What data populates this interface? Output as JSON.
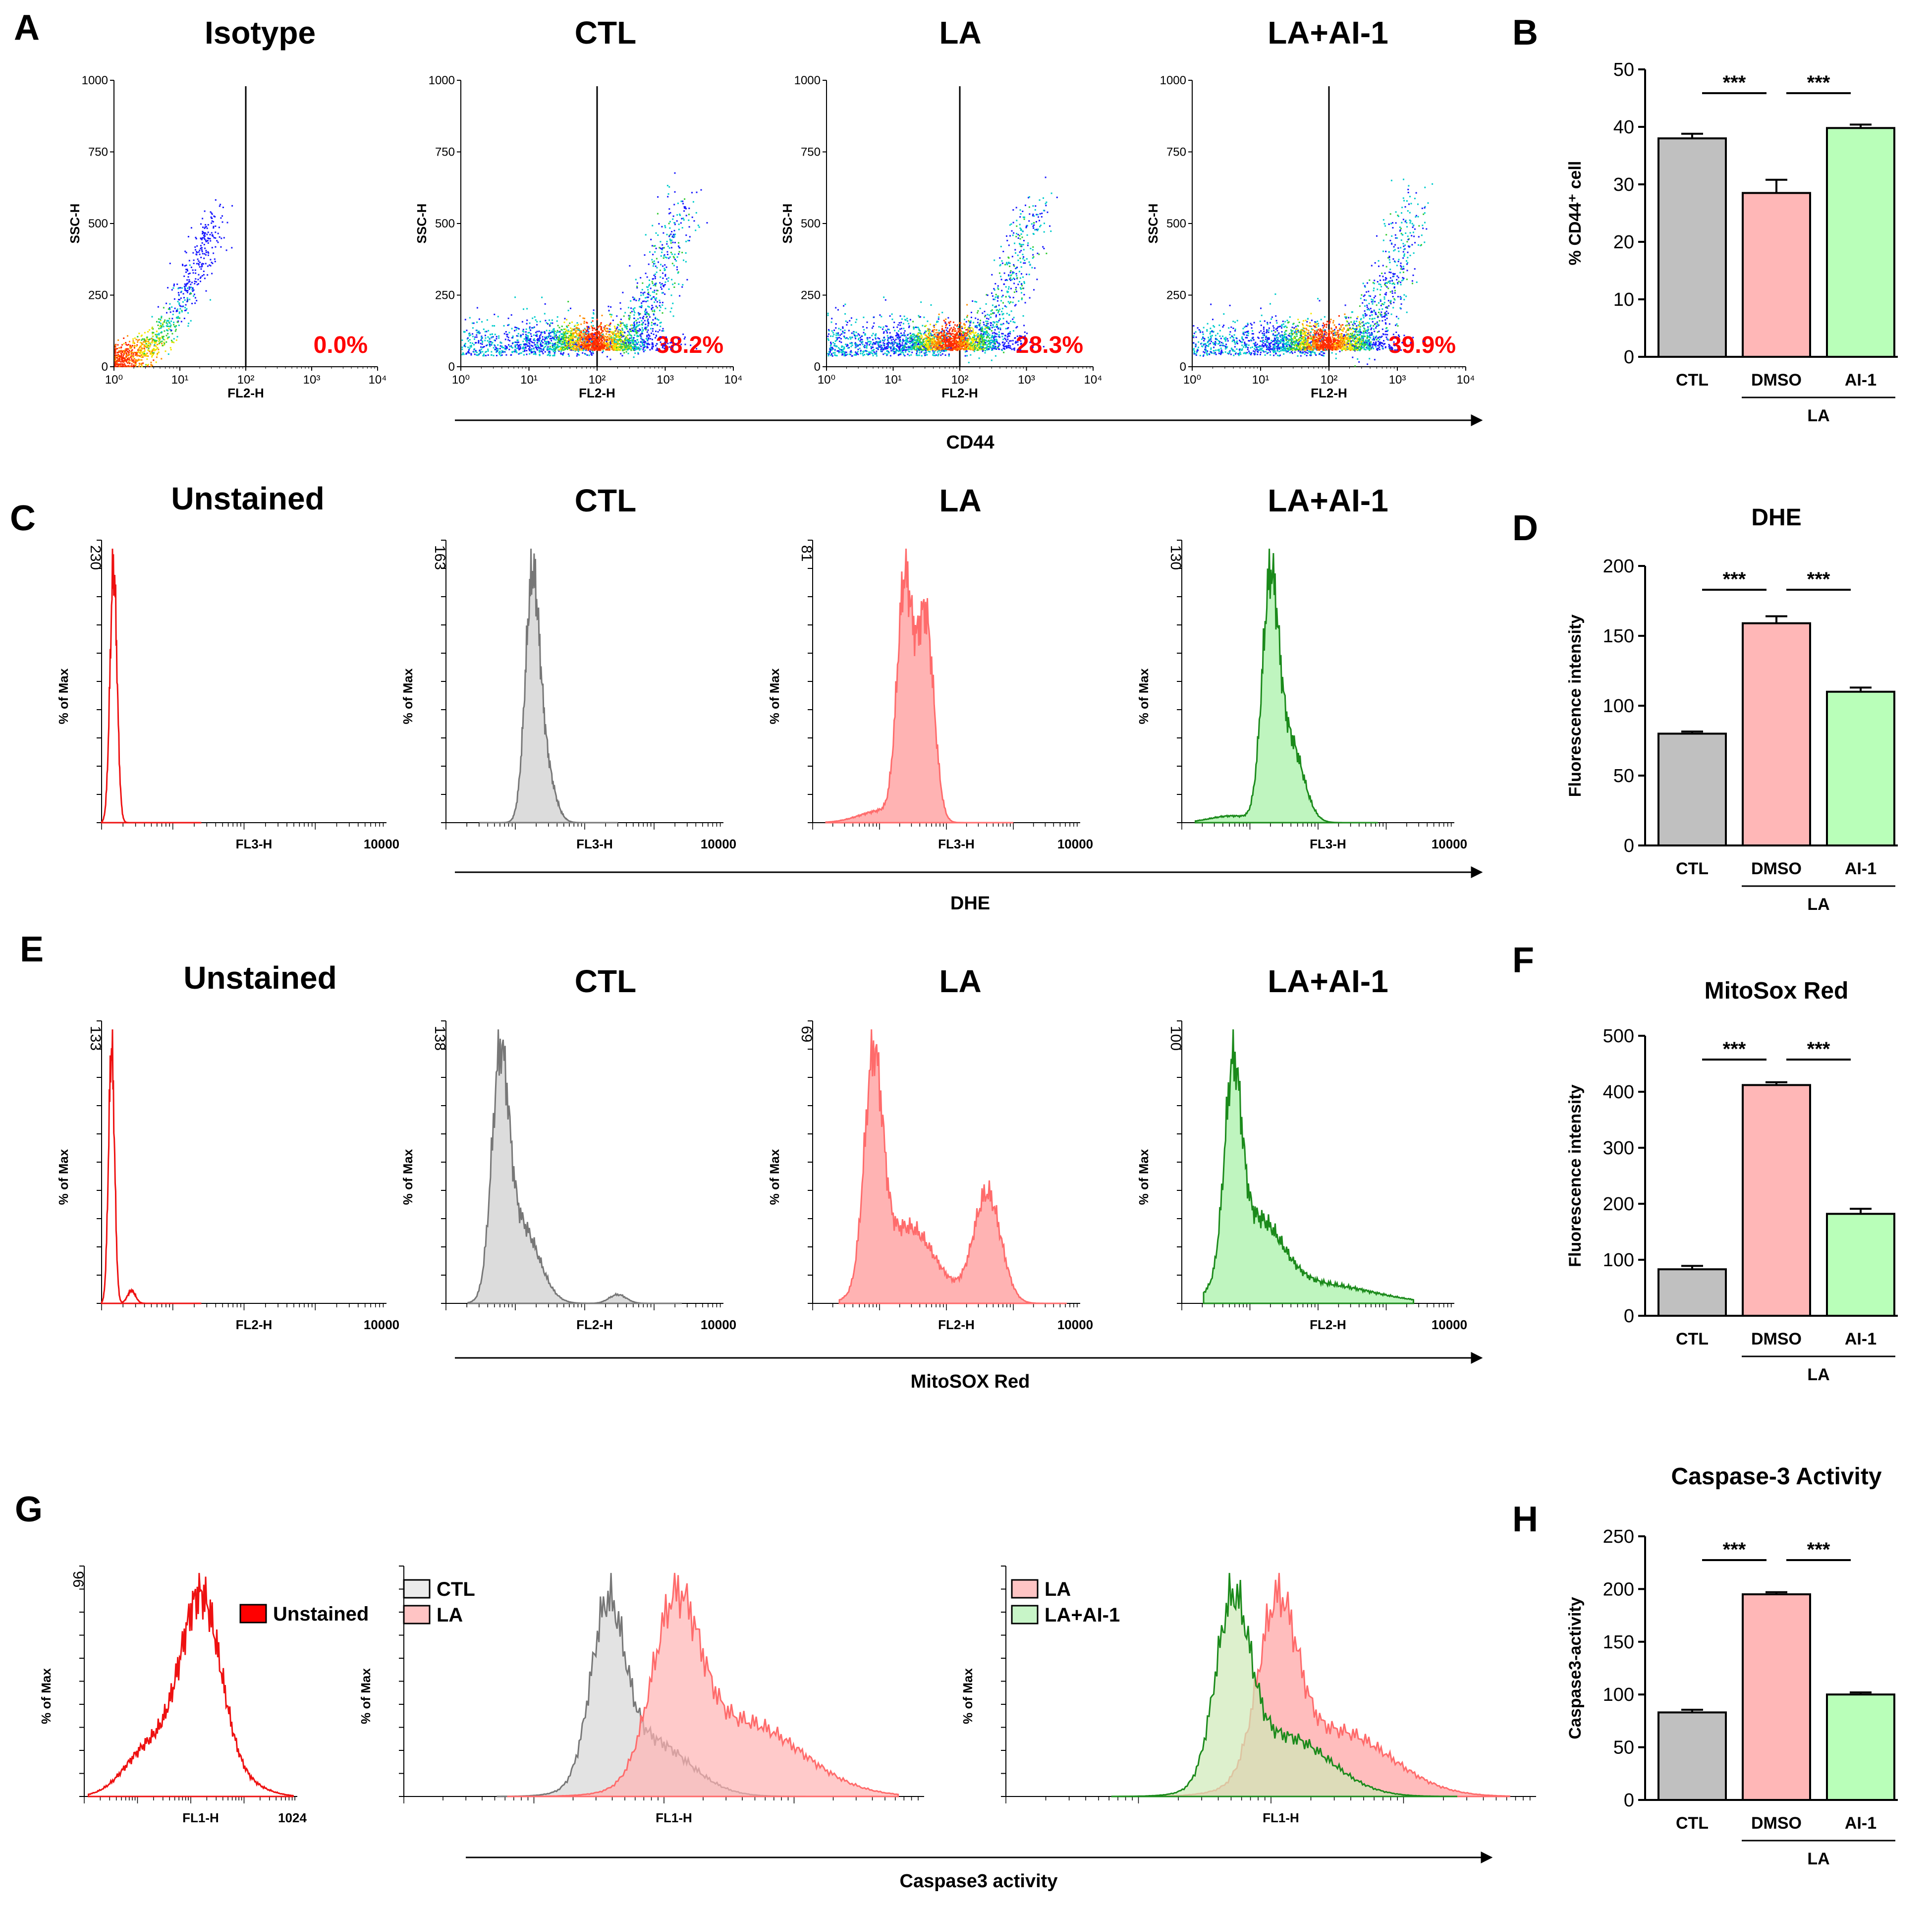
{
  "panel_letters": {
    "A": "A",
    "B": "B",
    "C": "C",
    "D": "D",
    "E": "E",
    "F": "F",
    "G": "G",
    "H": "H"
  },
  "row1_titles": [
    "Isotype",
    "CTL",
    "LA",
    "LA+AI-1"
  ],
  "row2_titles": [
    "Unstained",
    "CTL",
    "LA",
    "LA+AI-1"
  ],
  "row3_titles": [
    "Unstained",
    "CTL",
    "LA",
    "LA+AI-1"
  ],
  "chart_data": [
    {
      "id": "A",
      "type": "scatter",
      "title_list": [
        "Isotype",
        "CTL",
        "LA",
        "LA+AI-1"
      ],
      "xlabel": "FL2-H",
      "ylabel": "SSC-H",
      "x_ticks": [
        "10⁰",
        "10¹",
        "10²",
        "10³",
        "10⁴"
      ],
      "y_ticks": [
        "0",
        "250",
        "500",
        "750",
        "1000"
      ],
      "percentages": [
        "0.0%",
        "38.2%",
        "28.3%",
        "39.9%"
      ],
      "shared_axis_label": "CD44",
      "gate_decade": 2
    },
    {
      "id": "B",
      "type": "bar",
      "title": "",
      "categories": [
        "CTL",
        "DMSO",
        "AI-1"
      ],
      "group_label": "LA",
      "values": [
        38.0,
        28.5,
        39.8
      ],
      "errors": [
        0.8,
        2.3,
        0.6
      ],
      "ylabel": "% CD44⁺ cell",
      "ylim": [
        0,
        50
      ],
      "yticks": [
        "0",
        "10",
        "20",
        "30",
        "40",
        "50"
      ],
      "significance": [
        "***",
        "***"
      ],
      "colors": [
        "#c0c0c0",
        "#ffb7b7",
        "#b9ffb9"
      ]
    },
    {
      "id": "C",
      "type": "area",
      "title_list": [
        "Unstained",
        "CTL",
        "LA",
        "LA+AI-1"
      ],
      "xlabel": "FL3-H",
      "ylabel": "% of Max",
      "y_top": [
        "230",
        "163",
        "81",
        "130"
      ],
      "x_max_label": "10000",
      "shared_axis_label": "DHE"
    },
    {
      "id": "D",
      "type": "bar",
      "title": "DHE",
      "categories": [
        "CTL",
        "DMSO",
        "AI-1"
      ],
      "group_label": "LA",
      "values": [
        80,
        159,
        110
      ],
      "errors": [
        1.5,
        5,
        3
      ],
      "ylabel": "Fluorescence intensity",
      "ylim": [
        0,
        200
      ],
      "yticks": [
        "0",
        "50",
        "100",
        "150",
        "200"
      ],
      "significance": [
        "***",
        "***"
      ],
      "colors": [
        "#c0c0c0",
        "#ffb7b7",
        "#b9ffb9"
      ]
    },
    {
      "id": "E",
      "type": "area",
      "title_list": [
        "Unstained",
        "CTL",
        "LA",
        "LA+AI-1"
      ],
      "xlabel": "FL2-H",
      "ylabel": "% of Max",
      "y_top": [
        "133",
        "138",
        "69",
        "100"
      ],
      "x_max_label": "10000",
      "shared_axis_label": "MitoSOX Red"
    },
    {
      "id": "F",
      "type": "bar",
      "title": "MitoSox Red",
      "categories": [
        "CTL",
        "DMSO",
        "AI-1"
      ],
      "group_label": "LA",
      "values": [
        83,
        412,
        182
      ],
      "errors": [
        6,
        5,
        9
      ],
      "ylabel": "Fluorescence intensity",
      "ylim": [
        0,
        500
      ],
      "yticks": [
        "0",
        "100",
        "200",
        "300",
        "400",
        "500"
      ],
      "significance": [
        "***",
        "***"
      ],
      "colors": [
        "#c0c0c0",
        "#ffb7b7",
        "#b9ffb9"
      ]
    },
    {
      "id": "G",
      "type": "area",
      "xlabel": "FL1-H",
      "ylabel": "% of Max",
      "y_top": "96",
      "x_max_label": "1024",
      "legend_1": [
        "Unstained"
      ],
      "legend_2": [
        "CTL",
        "LA"
      ],
      "legend_3": [
        "LA",
        "LA+AI-1"
      ],
      "shared_axis_label": "Caspase3 activity"
    },
    {
      "id": "H",
      "type": "bar",
      "title": "Caspase-3 Activity",
      "categories": [
        "CTL",
        "DMSO",
        "AI-1"
      ],
      "group_label": "LA",
      "values": [
        83,
        195,
        100
      ],
      "errors": [
        2.5,
        2,
        2
      ],
      "ylabel": "Caspase3-activity",
      "ylim": [
        0,
        250
      ],
      "yticks": [
        "0",
        "50",
        "100",
        "150",
        "200",
        "250"
      ],
      "significance": [
        "***",
        "***"
      ],
      "colors": [
        "#c0c0c0",
        "#ffb7b7",
        "#b9ffb9"
      ]
    }
  ]
}
